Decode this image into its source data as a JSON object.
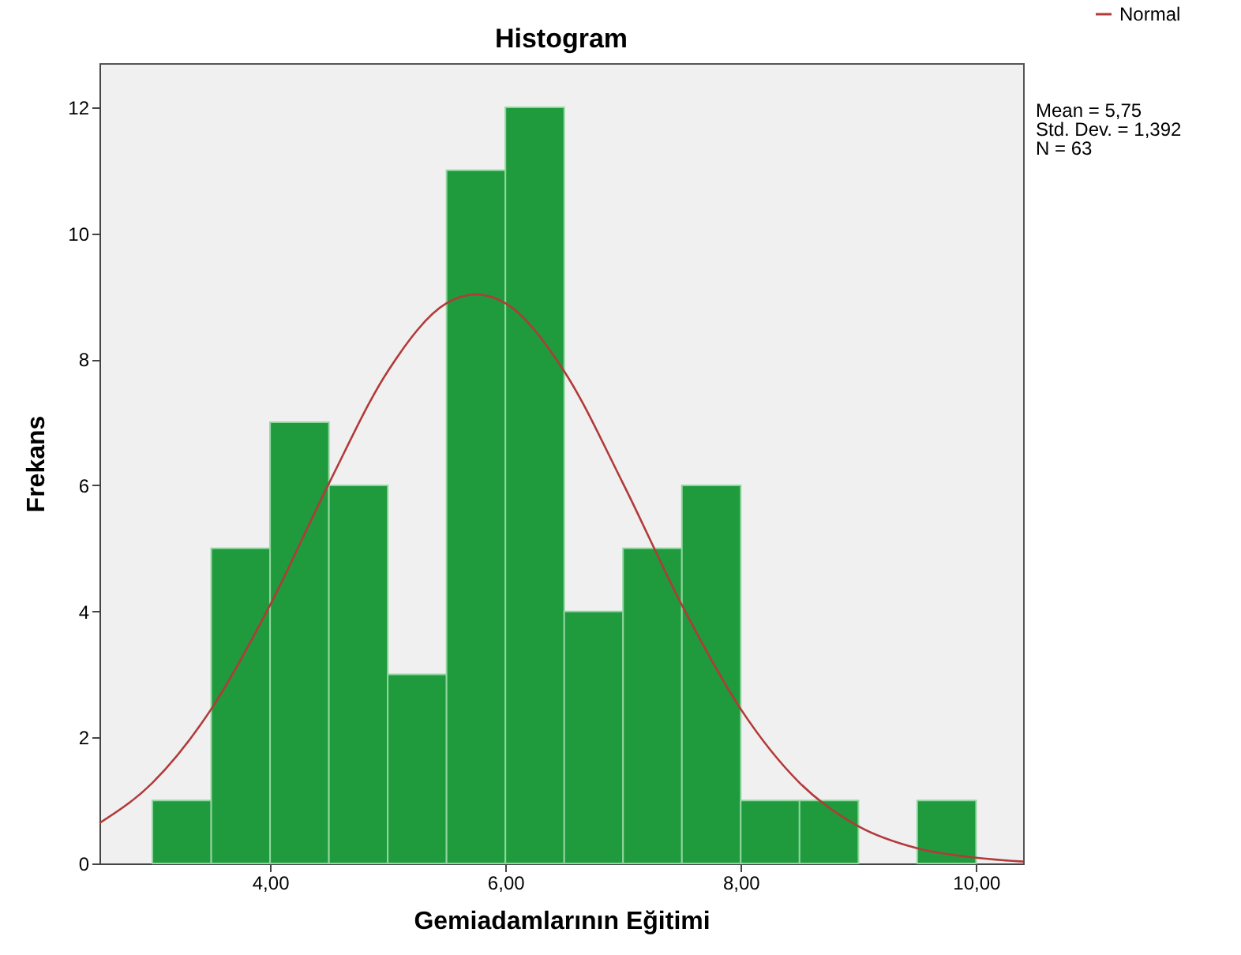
{
  "chart_data": {
    "type": "histogram",
    "title": "Histogram",
    "xlabel": "Gemiadamlarının Eğitimi",
    "ylabel": "Frekans",
    "bins": [
      3,
      3.5,
      4,
      4.5,
      5,
      5.5,
      6,
      6.5,
      7,
      7.5,
      8,
      8.5,
      9,
      9.5,
      10
    ],
    "values": [
      1,
      5,
      7,
      6,
      3,
      11,
      12,
      4,
      5,
      6,
      1,
      1,
      0,
      1
    ],
    "color": "#1f9a3c",
    "series": [
      {
        "name": "Normal",
        "type": "line",
        "color": "#b23a3a",
        "x": [
          2.55,
          3,
          3.5,
          4,
          4.5,
          5,
          5.5,
          5.75,
          6,
          6.5,
          7,
          7.5,
          8,
          8.5,
          9,
          9.5,
          10,
          10.4
        ],
        "values": [
          0.64,
          1.28,
          2.45,
          4.1,
          6.03,
          7.81,
          8.89,
          9.03,
          8.89,
          7.81,
          6.03,
          4.1,
          2.45,
          1.28,
          0.59,
          0.24,
          0.09,
          0.03
        ]
      }
    ],
    "xlim": [
      2.55,
      10.4
    ],
    "xticks": [
      {
        "value": 4,
        "label": "4,00"
      },
      {
        "value": 6,
        "label": "6,00"
      },
      {
        "value": 8,
        "label": "8,00"
      },
      {
        "value": 10,
        "label": "10,00"
      }
    ],
    "ylim": [
      0,
      12.7
    ],
    "yticks": [
      0,
      2,
      4,
      6,
      8,
      10,
      12
    ],
    "grid": false,
    "legend": "top right",
    "annotations": [
      "Mean = 5,75",
      "Std. Dev. = 1,392",
      "N = 63"
    ]
  }
}
